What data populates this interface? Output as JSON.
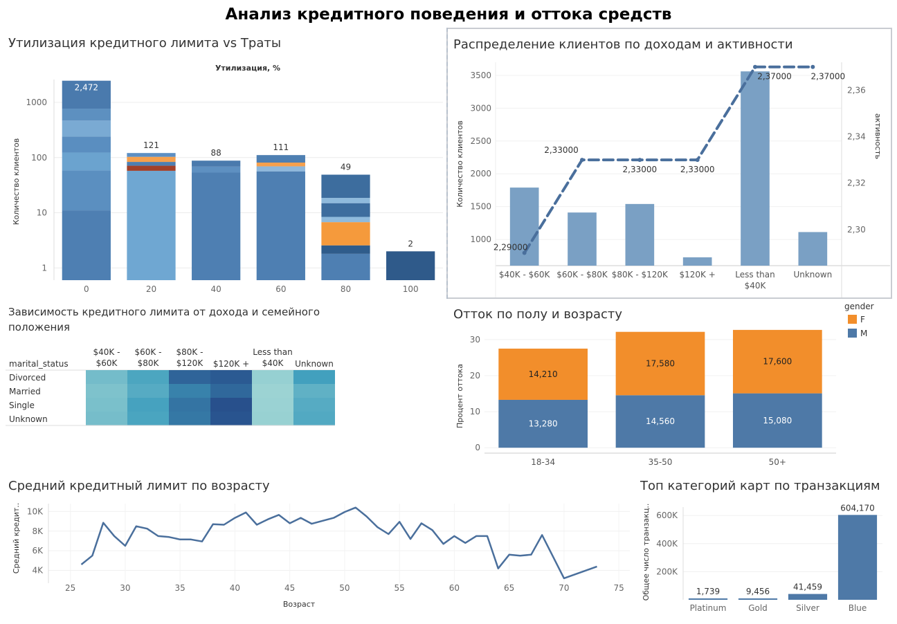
{
  "dashboard_title": "Анализ кредитного поведения и оттока средств",
  "panels": {
    "util": "Утилизация кредитного лимита vs Траты",
    "income": "Распределение клиентов по доходам и активности",
    "heat": "Зависимость кредитного лимита от дохода и семейного положения",
    "churn": "Отток по полу и возрасту",
    "age": "Средний кредитный лимит по возрасту",
    "cards": "Топ категорий карт по транзакциям"
  },
  "colors": {
    "blue": "#4e79a7",
    "blue_light": "#7aa0c4",
    "orange": "#f28e2b",
    "line": "#4a6f9c"
  },
  "chart_data": [
    {
      "id": "util",
      "type": "bar",
      "title": "Утилизация кредитного лимита vs Траты",
      "xtitle": "Утилизация, %",
      "ylabel": "Количество клиентов",
      "yscale": "log",
      "ylim": [
        0.6,
        4000
      ],
      "yticks": [
        1,
        10,
        100,
        1000
      ],
      "ytick_labels": [
        "1",
        "10",
        "100",
        "1000"
      ],
      "categories": [
        "0",
        "20",
        "40",
        "60",
        "80",
        "100"
      ],
      "values": [
        2472,
        121,
        88,
        111,
        49,
        2
      ],
      "value_labels": [
        "2,472",
        "121",
        "88",
        "111",
        "49",
        "2"
      ],
      "stacked_segments": true
    },
    {
      "id": "income",
      "type": "bar",
      "title": "Распределение клиентов по доходам и активности",
      "ylabel": "Количество клиентов",
      "y2label": "активность",
      "categories": [
        "$40K - $60K",
        "$60K - $80K",
        "$80K - $120K",
        "$120K +",
        "Less than $40K",
        "Unknown"
      ],
      "values": [
        1790,
        1410,
        1540,
        727,
        3561,
        1112
      ],
      "ylim": [
        600,
        3700
      ],
      "yticks": [
        1000,
        1500,
        2000,
        2500,
        3000,
        3500
      ],
      "line": {
        "values": [
          2.29,
          2.33,
          2.33,
          2.33,
          2.37,
          2.37
        ],
        "labels": [
          "2,29000",
          "2,33000",
          "2,33000",
          "2,33000",
          "2,37000",
          "2,37000"
        ],
        "y2lim": [
          2.2845,
          2.372
        ],
        "y2ticks": [
          2.3,
          2.32,
          2.34,
          2.36
        ],
        "y2tick_labels": [
          "2,30",
          "2,32",
          "2,34",
          "2,36"
        ],
        "style": "dashed"
      }
    },
    {
      "id": "heat",
      "type": "heatmap",
      "title": "Зависимость кредитного лимита от дохода и семейного положения",
      "row_header": "marital_status",
      "columns": [
        "$40K - $60K",
        "$60K - $80K",
        "$80K - $120K",
        "$120K +",
        "Less than $40K",
        "Unknown"
      ],
      "rows": [
        "Divorced",
        "Married",
        "Single",
        "Unknown"
      ],
      "values": [
        [
          0.35,
          0.55,
          0.9,
          0.95,
          0.18,
          0.6
        ],
        [
          0.3,
          0.5,
          0.75,
          0.88,
          0.15,
          0.45
        ],
        [
          0.32,
          0.58,
          0.82,
          1.0,
          0.16,
          0.5
        ],
        [
          0.34,
          0.56,
          0.8,
          0.98,
          0.17,
          0.52
        ]
      ]
    },
    {
      "id": "churn",
      "type": "bar",
      "title": "Отток по полу и возрасту",
      "ylabel": "Процент оттока",
      "categories": [
        "18-34",
        "35-50",
        "50+"
      ],
      "series": [
        {
          "name": "M",
          "values": [
            13.28,
            14.56,
            15.08
          ],
          "labels": [
            "13,280",
            "14,560",
            "15,080"
          ]
        },
        {
          "name": "F",
          "values": [
            14.21,
            17.58,
            17.6
          ],
          "labels": [
            "14,210",
            "17,580",
            "17,600"
          ]
        }
      ],
      "stacked": true,
      "ylim": [
        -1.5,
        34
      ],
      "yticks": [
        0,
        10,
        20,
        30
      ],
      "legend": {
        "title": "gender",
        "entries": [
          "F",
          "M"
        ],
        "position": "top-right"
      }
    },
    {
      "id": "age",
      "type": "line",
      "title": "Средний кредитный лимит по возрасту",
      "xlabel": "Возраст",
      "ylabel": "Средний кредит..",
      "x": [
        26,
        27,
        28,
        29,
        30,
        31,
        32,
        33,
        34,
        35,
        36,
        37,
        38,
        39,
        40,
        41,
        42,
        43,
        44,
        45,
        46,
        47,
        48,
        49,
        50,
        51,
        52,
        53,
        54,
        55,
        56,
        57,
        58,
        59,
        60,
        61,
        62,
        63,
        64,
        65,
        66,
        67,
        68,
        70,
        73
      ],
      "y": [
        4600,
        5500,
        8850,
        7500,
        6500,
        8500,
        8250,
        7500,
        7400,
        7150,
        7150,
        6950,
        8700,
        8650,
        9350,
        9900,
        8650,
        9200,
        9650,
        8800,
        9350,
        8750,
        9050,
        9350,
        9950,
        10400,
        9500,
        8400,
        7700,
        8950,
        7200,
        8800,
        8100,
        6700,
        7500,
        6800,
        7500,
        7500,
        4200,
        5600,
        5500,
        5600,
        7600,
        3200,
        4400
      ],
      "xlim": [
        23,
        76
      ],
      "xticks": [
        25,
        30,
        35,
        40,
        45,
        50,
        55,
        60,
        65,
        70,
        75
      ],
      "ylim": [
        2700,
        10800
      ],
      "yticks": [
        4000,
        6000,
        8000,
        10000
      ],
      "ytick_labels": [
        "4K",
        "6K",
        "8K",
        "10K"
      ]
    },
    {
      "id": "cards",
      "type": "bar",
      "title": "Топ категорий карт по транзакциям",
      "ylabel": "Общее число транзакц..",
      "categories": [
        "Platinum",
        "Gold",
        "Silver",
        "Blue"
      ],
      "values": [
        1739,
        9456,
        41459,
        604170
      ],
      "value_labels": [
        "1,739",
        "9,456",
        "41,459",
        "604,170"
      ],
      "ylim": [
        0,
        660000
      ],
      "yticks": [
        200000,
        400000,
        600000
      ],
      "ytick_labels": [
        "200K",
        "400K",
        "600K"
      ]
    }
  ]
}
